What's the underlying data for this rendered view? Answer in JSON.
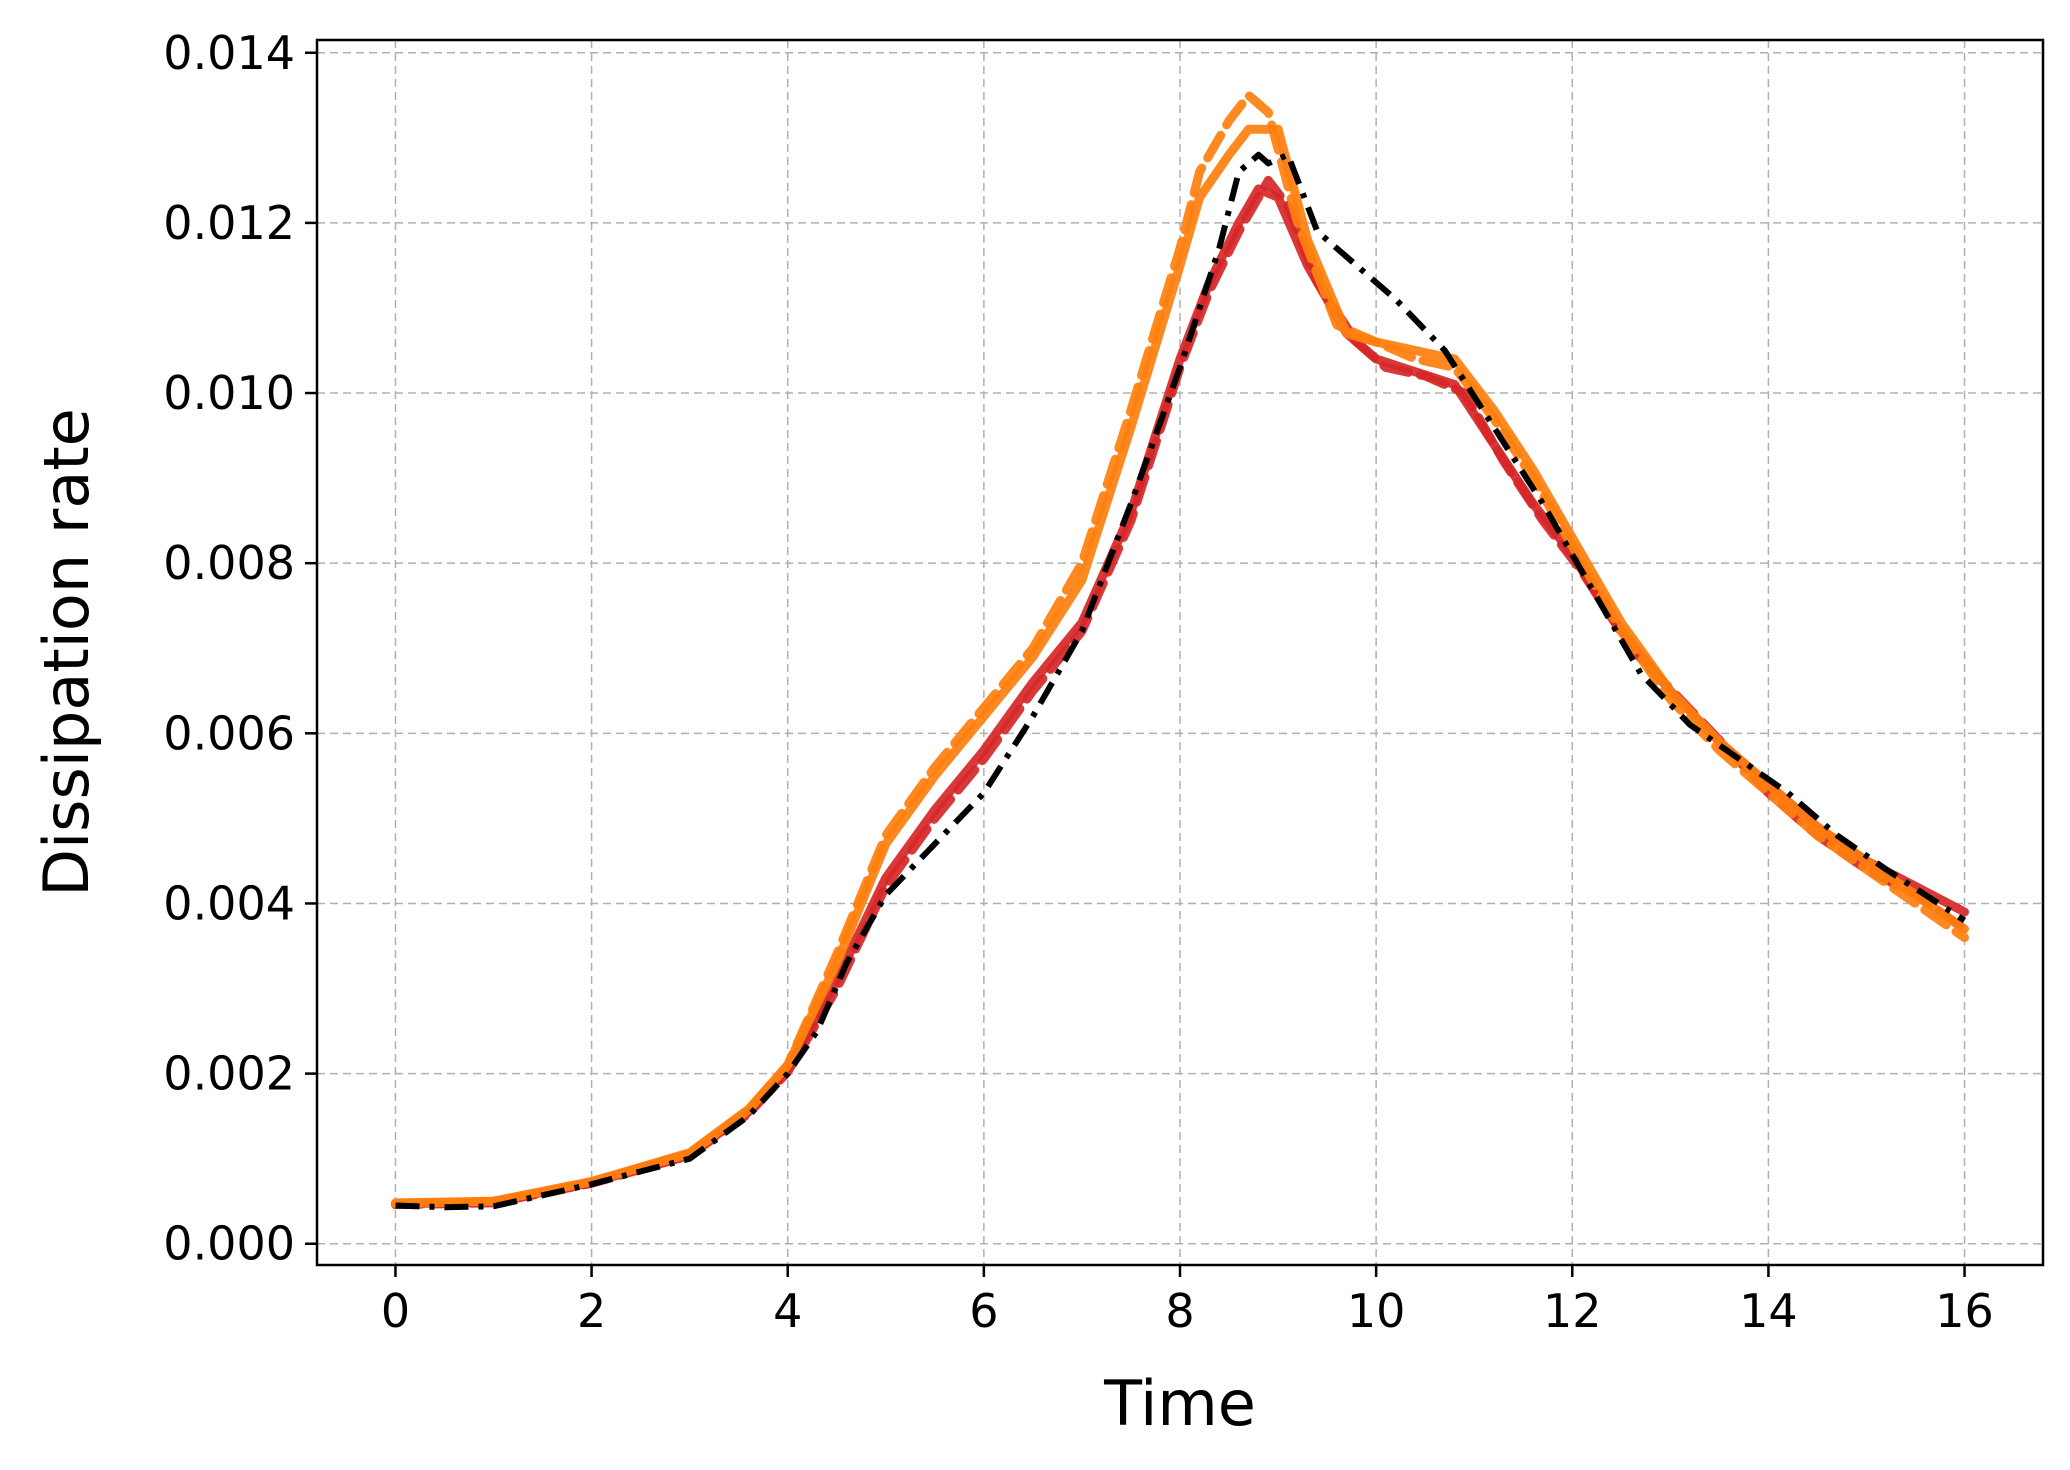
{
  "chart_data": {
    "type": "line",
    "xlabel": "Time",
    "ylabel": "Dissipation rate",
    "xlim": [
      -0.8,
      16.8
    ],
    "ylim": [
      -0.00025,
      0.01415
    ],
    "xticks": [
      0,
      2,
      4,
      6,
      8,
      10,
      12,
      14,
      16
    ],
    "xtick_labels": [
      "0",
      "2",
      "4",
      "6",
      "8",
      "10",
      "12",
      "14",
      "16"
    ],
    "yticks": [
      0,
      0.002,
      0.004,
      0.006,
      0.008,
      0.01,
      0.012,
      0.014
    ],
    "ytick_labels": [
      "0.000",
      "0.002",
      "0.004",
      "0.006",
      "0.008",
      "0.010",
      "0.012",
      "0.014"
    ],
    "grid": true,
    "series": [
      {
        "color": "#d62728",
        "style": "solid",
        "x": [
          0,
          1,
          2,
          3,
          3.6,
          4,
          4.5,
          5,
          5.5,
          6,
          6.5,
          7,
          7.5,
          8,
          8.3,
          8.6,
          8.8,
          9,
          9.3,
          9.7,
          10,
          10.4,
          10.8,
          11.2,
          11.6,
          12,
          12.5,
          13,
          13.5,
          14,
          14.5,
          15,
          15.5,
          16
        ],
        "y": [
          0.00047,
          0.00049,
          0.00072,
          0.00105,
          0.00155,
          0.00205,
          0.0031,
          0.0043,
          0.0051,
          0.0058,
          0.0066,
          0.0073,
          0.0086,
          0.0104,
          0.0113,
          0.012,
          0.0124,
          0.0123,
          0.0115,
          0.0107,
          0.0104,
          0.01025,
          0.0101,
          0.0094,
          0.0087,
          0.0081,
          0.0072,
          0.0065,
          0.0059,
          0.0054,
          0.0049,
          0.0045,
          0.0042,
          0.0039
        ]
      },
      {
        "color": "#d62728",
        "style": "dashed",
        "x": [
          0,
          1,
          2,
          3,
          3.6,
          4,
          4.5,
          5,
          5.5,
          6,
          6.5,
          7,
          7.5,
          8,
          8.3,
          8.6,
          8.9,
          9.1,
          9.4,
          9.8,
          10.1,
          10.5,
          10.9,
          11.3,
          11.7,
          12.1,
          12.6,
          13.1,
          13.6,
          14,
          14.5,
          15,
          15.5,
          16
        ],
        "y": [
          0.00046,
          0.00048,
          0.00071,
          0.00104,
          0.00153,
          0.00202,
          0.003,
          0.0042,
          0.005,
          0.0057,
          0.0065,
          0.0072,
          0.0085,
          0.0103,
          0.0112,
          0.0119,
          0.0125,
          0.0122,
          0.0113,
          0.0106,
          0.0103,
          0.0102,
          0.01,
          0.0092,
          0.0085,
          0.0079,
          0.007,
          0.0064,
          0.0058,
          0.0053,
          0.0048,
          0.0044,
          0.0041,
          0.0037
        ]
      },
      {
        "color": "#ff7f0e",
        "style": "solid",
        "x": [
          0,
          1,
          2,
          3,
          3.6,
          4,
          4.5,
          5,
          5.5,
          6,
          6.5,
          7,
          7.5,
          8,
          8.2,
          8.5,
          8.7,
          9,
          9.3,
          9.7,
          10,
          10.4,
          10.8,
          11.2,
          11.6,
          12,
          12.5,
          13,
          13.5,
          14,
          14.5,
          15,
          15.5,
          16
        ],
        "y": [
          0.00048,
          0.0005,
          0.00073,
          0.00107,
          0.00158,
          0.0021,
          0.0033,
          0.0047,
          0.0055,
          0.0062,
          0.0069,
          0.0078,
          0.0096,
          0.0115,
          0.0123,
          0.0128,
          0.0131,
          0.0131,
          0.0118,
          0.0107,
          0.0106,
          0.0105,
          0.0104,
          0.0098,
          0.0091,
          0.0083,
          0.0073,
          0.0065,
          0.0059,
          0.0054,
          0.0049,
          0.0045,
          0.0041,
          0.0037
        ]
      },
      {
        "color": "#ff7f0e",
        "style": "dashed",
        "x": [
          0,
          1,
          2,
          3,
          3.6,
          4,
          4.5,
          5,
          5.5,
          6,
          6.5,
          7,
          7.5,
          8,
          8.2,
          8.5,
          8.7,
          8.9,
          9.2,
          9.6,
          10,
          10.4,
          10.8,
          11.2,
          11.6,
          12,
          12.5,
          13,
          13.5,
          14,
          14.5,
          15,
          15.5,
          16
        ],
        "y": [
          0.00047,
          0.0005,
          0.00073,
          0.00106,
          0.00157,
          0.0021,
          0.0034,
          0.0048,
          0.0056,
          0.0063,
          0.007,
          0.008,
          0.0098,
          0.0117,
          0.0126,
          0.0132,
          0.0135,
          0.0133,
          0.012,
          0.0108,
          0.0106,
          0.0104,
          0.0103,
          0.0097,
          0.009,
          0.0082,
          0.0072,
          0.0064,
          0.0058,
          0.0053,
          0.0048,
          0.0044,
          0.004,
          0.0036
        ]
      },
      {
        "color": "#000000",
        "style": "dashdot",
        "x": [
          0,
          0.5,
          1,
          2,
          3,
          3.6,
          4,
          4.3,
          4.6,
          5,
          5.5,
          6,
          6.5,
          7,
          7.5,
          8,
          8.4,
          8.6,
          8.8,
          8.9,
          9.1,
          9.4,
          9.8,
          10.2,
          10.7,
          11.2,
          11.7,
          12.2,
          12.7,
          13.2,
          13.7,
          14.2,
          14.7,
          15.2,
          15.6,
          16
        ],
        "y": [
          0.00045,
          0.00043,
          0.00044,
          0.0007,
          0.001,
          0.0015,
          0.002,
          0.0025,
          0.0033,
          0.0041,
          0.0047,
          0.0053,
          0.0062,
          0.0072,
          0.0087,
          0.0103,
          0.0117,
          0.0126,
          0.0128,
          0.0127,
          0.0128,
          0.0119,
          0.0115,
          0.0111,
          0.0105,
          0.0096,
          0.0087,
          0.0077,
          0.0067,
          0.0061,
          0.0057,
          0.0053,
          0.0048,
          0.0044,
          0.0041,
          0.0038
        ]
      }
    ]
  }
}
